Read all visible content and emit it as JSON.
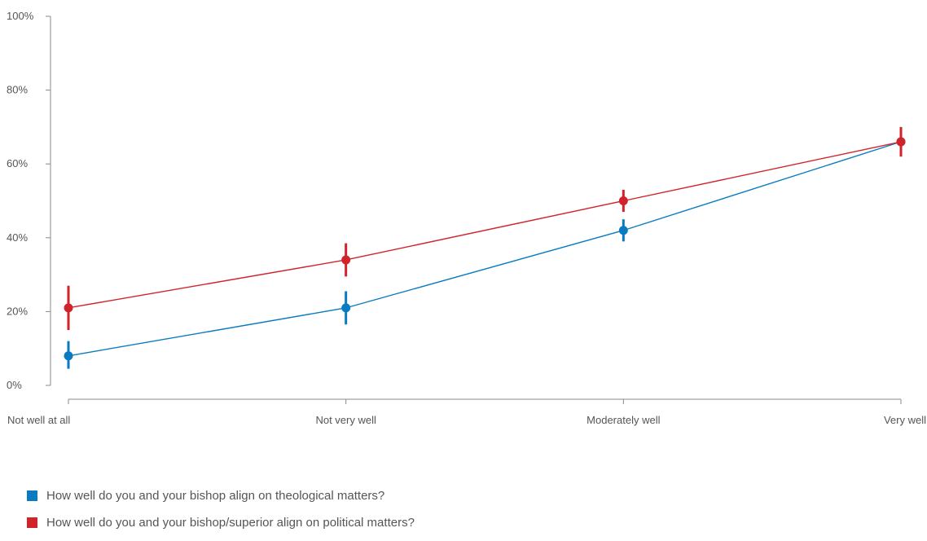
{
  "chart_data": {
    "type": "line",
    "categories": [
      "Not well at all",
      "Not very well",
      "Moderately well",
      "Very well"
    ],
    "y_ticks": [
      "0%",
      "20%",
      "40%",
      "60%",
      "80%",
      "100%"
    ],
    "ylim": [
      0,
      100
    ],
    "grid": false,
    "legend_position": "bottom-left",
    "series": [
      {
        "name": "How well do you and your bishop align on theological matters?",
        "color": "#0a7bc1",
        "values": [
          8,
          21,
          42,
          66
        ],
        "err_low": [
          4.5,
          16.5,
          39,
          62
        ],
        "err_high": [
          12,
          25.5,
          45,
          70
        ]
      },
      {
        "name": "How well do you and your bishop/superior align on political matters?",
        "color": "#d1232a",
        "values": [
          21,
          34,
          50,
          66
        ],
        "err_low": [
          15,
          29.5,
          47,
          62
        ],
        "err_high": [
          27,
          38.5,
          53,
          70
        ]
      }
    ]
  }
}
